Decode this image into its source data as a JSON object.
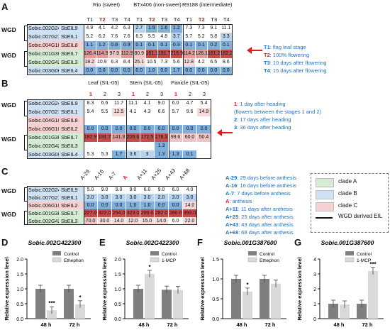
{
  "colors": {
    "clade_a": "#d4ecd4",
    "clade_b": "#cfe2f3",
    "clade_c": "#f6d1d1",
    "high": "#c0392b",
    "mid": "#e8a0a0",
    "low_blue": "#6fa8dc",
    "accent_red": "#e31a1c",
    "legend_blue": "#1a73c8"
  },
  "panelA": {
    "label": "A",
    "groups": [
      "Rio (sweet)",
      "BTx406 (non-sweet)",
      "R9188 (intermediate)"
    ],
    "cols": [
      "T1",
      "T2",
      "T3",
      "T4"
    ],
    "wgd": "WGD",
    "rows": [
      {
        "id": "Sobic.002G247500",
        "name": "SbEIL9",
        "clade": "b",
        "vals": [
          "4.9",
          "4.1",
          "4.2",
          "6.3",
          "2.7",
          "1.9",
          "1.6",
          "1.2",
          "7.3",
          "7.3",
          "9.1",
          "11.1"
        ]
      },
      {
        "id": "Sobic.007G210700",
        "name": "SbEIL1",
        "clade": "b",
        "vals": [
          "5.2",
          "6.2",
          "7.6",
          "7.6",
          "6.5",
          "5.5",
          "4.8",
          "3.7",
          "5.7",
          "5.2",
          "5.8",
          "3.3"
        ]
      },
      {
        "id": "Sobic.004G189100",
        "name": "SbEIL8",
        "clade": "c",
        "vals": [
          "1.1",
          "1.2",
          "0.8",
          "0.9",
          "0.1",
          "0.1",
          "0.1",
          "0.3",
          "0.1",
          "0.1",
          "0.2",
          "0.1"
        ]
      },
      {
        "id": "Sobic.001G387600",
        "name": "SbEIL7",
        "clade": "a",
        "vals": [
          "126.4",
          "114.9",
          "97.9",
          "112.9",
          "80.9",
          "161.1",
          "191.7",
          "216.9",
          "114.2",
          "126.1",
          "161.2",
          "182.2"
        ]
      },
      {
        "id": "Sobic.002G422300",
        "name": "SbEIL3",
        "clade": "a",
        "vals": [
          "18.2",
          "10.9",
          "6.3",
          "8.4",
          "25.1",
          "10.5",
          "7.3",
          "5.6",
          "12.8",
          "4.2",
          "6.5",
          "8.6"
        ]
      },
      {
        "id": "Sobic.003G068700",
        "name": "SbEIL4",
        "clade": "b",
        "vals": [
          "0.0",
          "0.0",
          "0.0",
          "0.0",
          "0.0",
          "1.0",
          "0.0",
          "1.7",
          "0.0",
          "0.0",
          "0.0",
          "0.0"
        ]
      }
    ],
    "legend": [
      {
        "k": "T1",
        "v": ": flag leaf stage"
      },
      {
        "k": "T2",
        "v": ": 100% flowering"
      },
      {
        "k": "T3",
        "v": ": 10 days after flowering"
      },
      {
        "k": "T4",
        "v": ": 15 days after flowering"
      }
    ]
  },
  "panelB": {
    "label": "B",
    "groups": [
      "Leaf (SIL-05)",
      "Stem (SIL-05)",
      "Panicle (SIL-05)"
    ],
    "cols": [
      "1",
      "2",
      "3"
    ],
    "wgd": "WGD",
    "rows": [
      {
        "id": "Sobic.002G247500",
        "name": "SbEIL9",
        "clade": "b",
        "vals": [
          "8.3",
          "6.6",
          "11.7",
          "11.1",
          "4.1",
          "9.0",
          "6.0",
          "4.7",
          "5.4"
        ]
      },
      {
        "id": "Sobic.007G210700",
        "name": "SbEIL1",
        "clade": "b",
        "vals": [
          "9.4",
          "5.5",
          "12.5",
          "4.1",
          "4.3",
          "6.6",
          "5.7",
          "9.6",
          "14.9"
        ]
      },
      {
        "id": "Sobic.004G189100",
        "name": "SbEIL8",
        "clade": "c",
        "vals": [
          "",
          "",
          "",
          "",
          "",
          "",
          "",
          "",
          ""
        ]
      },
      {
        "id": "Sobic.006G104000",
        "name": "SbEIL2",
        "clade": "c",
        "vals": [
          "0.0",
          "0.0",
          "0.0",
          "0.0",
          "0.0",
          "0.0",
          "0.0",
          "0.0",
          "0.0"
        ]
      },
      {
        "id": "Sobic.001G387600",
        "name": "SbEIL7",
        "clade": "a",
        "vals": [
          "182.9",
          "191.7",
          "141.3",
          "226.6",
          "172.5",
          "178.3",
          "99.6",
          "60.0",
          "50.4"
        ]
      },
      {
        "id": "Sobic.002G422300",
        "name": "SbEIL3",
        "clade": "a",
        "vals": [
          "",
          "",
          "",
          "",
          "",
          "1.3",
          "",
          "",
          ""
        ]
      },
      {
        "id": "Sobic.003G068700",
        "name": "SbEIL4",
        "clade": "b",
        "vals": [
          "5.3",
          "5.3",
          "1.7",
          "3.6",
          "3",
          "1.3",
          "1.3",
          "0.1",
          ""
        ]
      }
    ],
    "legend": [
      {
        "k": "1",
        "v": ": 1 day after heading"
      },
      {
        "k": "",
        "v": "(flowers between the stages 1 and 2)"
      },
      {
        "k": "2",
        "v": ": 17 days after heading"
      },
      {
        "k": "3",
        "v": ": 36 days after heading"
      }
    ]
  },
  "panelC": {
    "label": "C",
    "cols": [
      "A-29",
      "A-16",
      "A-7",
      "A",
      "A+11",
      "A+25",
      "A+43",
      "A+68"
    ],
    "wgd": "WGD",
    "rows": [
      {
        "id": "Sobic.002G247500",
        "name": "SbEIL9",
        "clade": "b",
        "vals": [
          "5.0",
          "9.0",
          "9.0",
          "9.0",
          "6.0",
          "9.0",
          "6.0",
          "4.0"
        ]
      },
      {
        "id": "Sobic.007G210700",
        "name": "SbEIL1",
        "clade": "b",
        "vals": [
          "3.0",
          "3.0",
          "3.0",
          "3.0",
          "3.0",
          "2.0",
          "3.0",
          "3.0"
        ]
      },
      {
        "id": "Sobic.006G104000",
        "name": "SbEIL2",
        "clade": "c",
        "vals": [
          "0.0",
          "0.0",
          "0.0",
          "1.0",
          "1.0",
          "0.0",
          "0.0",
          "14.0"
        ]
      },
      {
        "id": "Sobic.001G387600",
        "name": "SbEIL7",
        "clade": "a",
        "vals": [
          "227.0",
          "322.0",
          "254.0",
          "323.0",
          "200.0",
          "282.0",
          "280.0",
          "393.0"
        ]
      },
      {
        "id": "Sobic.002G422300",
        "name": "SbEIL3",
        "clade": "a",
        "vals": [
          "70.0",
          "30.0",
          "14.0",
          "12.0",
          "15.0",
          "14.0",
          "6.0",
          "22.0"
        ]
      }
    ],
    "legend": [
      {
        "k": "A-29",
        "v": ": 29 days before anthesis"
      },
      {
        "k": "A-16",
        "v": ": 16 days before anthesis"
      },
      {
        "k": "A-7",
        "v": ": 7 days before anthesis"
      },
      {
        "k": "A",
        "v": ": anthesis"
      },
      {
        "k": "A+11",
        "v": ": 11 days after anthesis"
      },
      {
        "k": "A+25",
        "v": ": 25 days after anthesis"
      },
      {
        "k": "A+43",
        "v": ": 43 days after anthesis"
      },
      {
        "k": "A+68",
        "v": ": 68 days after anthesis"
      }
    ],
    "clade_legend": [
      "clade A",
      "clade B",
      "clade C"
    ],
    "wgd_legend": "WGD derived EIL"
  },
  "chart_data": [
    {
      "panel": "D",
      "type": "bar",
      "title": "Sobic.002G422300",
      "categories": [
        "48 h",
        "72 h"
      ],
      "series": [
        {
          "name": "Control",
          "values": [
            1.0,
            1.0
          ]
        },
        {
          "name": "Ethephon",
          "values": [
            0.28,
            0.48
          ]
        }
      ],
      "sig": [
        "***",
        "*"
      ],
      "ylim": [
        0,
        2.0
      ],
      "ylabel": "Relative expression level",
      "yticks": [
        "0.0",
        "0.5",
        "1.0",
        "1.5",
        "2.0"
      ]
    },
    {
      "panel": "E",
      "type": "bar",
      "title": "Sobic.002G422300",
      "categories": [
        "48 h",
        "72 h"
      ],
      "series": [
        {
          "name": "Control",
          "values": [
            1.0,
            0.97
          ]
        },
        {
          "name": "1-MCP",
          "values": [
            1.5,
            0.96
          ]
        }
      ],
      "sig": [
        "*",
        ""
      ],
      "ylim": [
        0,
        2.0
      ],
      "ylabel": "Relative expression level",
      "yticks": [
        "0.0",
        "0.5",
        "1.0",
        "1.5",
        "2.0"
      ]
    },
    {
      "panel": "F",
      "type": "bar",
      "title": "Sobic.001G387600",
      "categories": [
        "48 h",
        "72 h"
      ],
      "series": [
        {
          "name": "Control",
          "values": [
            1.0,
            1.0
          ]
        },
        {
          "name": "Ethephon",
          "values": [
            0.68,
            0.88
          ]
        }
      ],
      "sig": [
        "*",
        ""
      ],
      "ylim": [
        0,
        1.5
      ],
      "ylabel": "Relative expression level",
      "yticks": [
        "0.0",
        "0.5",
        "1.0",
        "1.5"
      ]
    },
    {
      "panel": "G",
      "type": "bar",
      "title": "Sobic.001G387600",
      "categories": [
        "48 h",
        "72 h"
      ],
      "series": [
        {
          "name": "Control",
          "values": [
            1.0,
            1.0
          ]
        },
        {
          "name": "1-MCP",
          "values": [
            0.95,
            3.2
          ]
        }
      ],
      "sig": [
        "",
        "***"
      ],
      "ylim": [
        0,
        4
      ],
      "ylabel": "Relative expression level",
      "yticks": [
        "0",
        "1",
        "2",
        "3",
        "4"
      ]
    }
  ]
}
